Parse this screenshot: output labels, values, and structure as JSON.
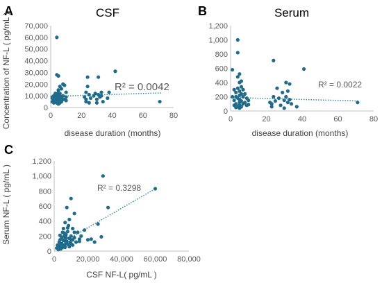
{
  "chart_data": [
    {
      "panel": "A",
      "type": "scatter",
      "title": "CSF",
      "xlabel": "disease duration (months)",
      "ylabel": "Concentration of NF-L ( pg/mL )",
      "xlim": [
        0,
        80
      ],
      "ylim": [
        0,
        70000
      ],
      "xticks": [
        0,
        20,
        40,
        60,
        80
      ],
      "yticks": [
        0,
        10000,
        20000,
        30000,
        40000,
        50000,
        60000,
        70000
      ],
      "x_tick_labels": [
        "0",
        "20",
        "40",
        "60",
        "80"
      ],
      "y_tick_labels": [
        "0",
        "10,000",
        "20,000",
        "30,000",
        "40,000",
        "50,000",
        "60,000",
        "70,000"
      ],
      "annotation": "R² = 0.0042",
      "trendline": {
        "x": [
          0,
          72
        ],
        "y": [
          9500,
          12500
        ],
        "style": "dotted"
      },
      "grid": false,
      "color": "#1F6B8C",
      "x": [
        1,
        1,
        1,
        2,
        2,
        2,
        2,
        3,
        3,
        3,
        3,
        3,
        4,
        4,
        4,
        4,
        4,
        4,
        4,
        5,
        5,
        5,
        5,
        5,
        5,
        5,
        5,
        5,
        6,
        6,
        6,
        6,
        6,
        6,
        7,
        7,
        7,
        8,
        8,
        8,
        9,
        9,
        10,
        10,
        10,
        22,
        23,
        23,
        23,
        24,
        24,
        25,
        25,
        26,
        28,
        29,
        30,
        30,
        31,
        31,
        32,
        33,
        33,
        34,
        37,
        38,
        42,
        71
      ],
      "y": [
        8000,
        5000,
        9000,
        6000,
        7000,
        10000,
        4000,
        8000,
        9000,
        5000,
        6000,
        12000,
        60000,
        28000,
        11000,
        9000,
        7000,
        5000,
        4000,
        27000,
        15000,
        13000,
        11000,
        10000,
        8000,
        6000,
        5000,
        3000,
        18000,
        12000,
        10000,
        8000,
        6000,
        4000,
        16000,
        9000,
        5000,
        20000,
        10000,
        7000,
        19000,
        7000,
        13000,
        9000,
        6000,
        9000,
        13000,
        7000,
        5000,
        26000,
        18000,
        11000,
        4000,
        8000,
        10000,
        12000,
        7000,
        4000,
        26000,
        11000,
        9000,
        13000,
        10000,
        5000,
        8000,
        13000,
        31000,
        5000
      ]
    },
    {
      "panel": "B",
      "type": "scatter",
      "title": "Serum",
      "xlabel": "disease duration (months)",
      "ylabel": "",
      "xlim": [
        0,
        80
      ],
      "ylim": [
        0,
        1200
      ],
      "xticks": [
        0,
        20,
        40,
        60,
        80
      ],
      "yticks": [
        0,
        200,
        400,
        600,
        800,
        1000,
        1200
      ],
      "x_tick_labels": [
        "0",
        "20",
        "40",
        "60",
        "80"
      ],
      "y_tick_labels": [
        "0",
        "200",
        "400",
        "600",
        "800",
        "1,000",
        "1,200"
      ],
      "annotation": "R² = 0.0022",
      "trendline": {
        "x": [
          0,
          72
        ],
        "y": [
          190,
          140
        ],
        "style": "dotted"
      },
      "grid": false,
      "color": "#1F6B8C",
      "x": [
        1,
        1,
        2,
        2,
        2,
        3,
        3,
        3,
        3,
        4,
        4,
        4,
        4,
        4,
        4,
        5,
        5,
        5,
        5,
        5,
        5,
        5,
        5,
        6,
        6,
        6,
        6,
        6,
        7,
        7,
        7,
        8,
        8,
        9,
        9,
        10,
        10,
        22,
        23,
        23,
        24,
        24,
        25,
        26,
        27,
        28,
        29,
        30,
        30,
        31,
        31,
        32,
        32,
        33,
        33,
        34,
        37,
        41,
        71
      ],
      "y": [
        580,
        200,
        300,
        150,
        80,
        260,
        200,
        100,
        50,
        1000,
        820,
        480,
        320,
        180,
        60,
        520,
        400,
        280,
        220,
        160,
        120,
        80,
        40,
        420,
        340,
        240,
        140,
        60,
        300,
        200,
        100,
        240,
        120,
        180,
        80,
        150,
        90,
        120,
        100,
        60,
        710,
        200,
        140,
        320,
        180,
        80,
        260,
        150,
        40,
        400,
        200,
        280,
        120,
        380,
        160,
        100,
        60,
        590,
        120
      ]
    },
    {
      "panel": "C",
      "type": "scatter",
      "title": "",
      "xlabel": "CSF NF-L( pg/mL )",
      "ylabel": "Serum NF-L ( pg/mL )",
      "xlim": [
        0,
        80000
      ],
      "ylim": [
        0,
        1200
      ],
      "xticks": [
        0,
        20000,
        40000,
        60000,
        80000
      ],
      "yticks": [
        0,
        200,
        400,
        600,
        800,
        1000,
        1200
      ],
      "x_tick_labels": [
        "0",
        "20,000",
        "40,000",
        "60,000",
        "80,000"
      ],
      "y_tick_labels": [
        "0",
        "200",
        "400",
        "600",
        "800",
        "1,000",
        "1,200"
      ],
      "annotation": "R² = 0.3298",
      "trendline": {
        "x": [
          3000,
          60000
        ],
        "y": [
          90,
          830
        ],
        "style": "dotted"
      },
      "grid": false,
      "color": "#1F6B8C",
      "x": [
        1500,
        2000,
        2500,
        3000,
        3000,
        3500,
        4000,
        4000,
        4500,
        4500,
        5000,
        5000,
        5500,
        5500,
        6000,
        6000,
        6500,
        6500,
        7000,
        7000,
        7500,
        7500,
        8000,
        8000,
        8500,
        9000,
        9000,
        9500,
        10000,
        10000,
        10500,
        11000,
        11000,
        12000,
        12000,
        13000,
        14000,
        15000,
        16000,
        18000,
        20000,
        22000,
        24000,
        26000,
        28000,
        29000,
        32000,
        60000,
        5000,
        6000,
        8000,
        9000,
        4000,
        7000,
        10000,
        12000,
        3500,
        6500,
        11000,
        15000
      ],
      "y": [
        40,
        80,
        20,
        120,
        60,
        150,
        90,
        30,
        180,
        100,
        250,
        60,
        140,
        300,
        200,
        80,
        380,
        160,
        220,
        110,
        580,
        130,
        260,
        90,
        340,
        170,
        420,
        120,
        700,
        200,
        150,
        300,
        80,
        500,
        180,
        120,
        250,
        160,
        200,
        280,
        150,
        160,
        120,
        360,
        190,
        1000,
        580,
        830,
        50,
        240,
        310,
        60,
        70,
        180,
        100,
        250,
        210,
        50,
        150,
        130
      ]
    }
  ]
}
